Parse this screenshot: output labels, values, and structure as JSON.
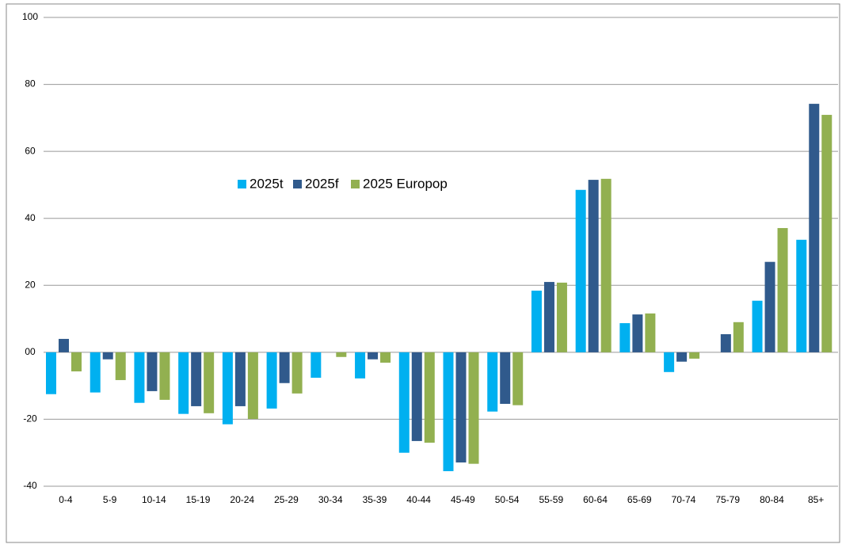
{
  "chart_data": {
    "type": "bar",
    "categories": [
      "0-4",
      "5-9",
      "10-14",
      "15-19",
      "20-24",
      "25-29",
      "30-34",
      "35-39",
      "40-44",
      "45-49",
      "50-54",
      "55-59",
      "60-64",
      "65-69",
      "70-74",
      "75-79",
      "80-84",
      "85+"
    ],
    "series": [
      {
        "name": "2025t",
        "color": "#00b0f0",
        "values": [
          -12.5,
          -12,
          -15.1,
          -18.4,
          -21.5,
          -16.8,
          -7.6,
          -7.8,
          -30,
          -35.5,
          -17.7,
          18.4,
          48.5,
          8.7,
          -5.9,
          null,
          15.4,
          33.6
        ]
      },
      {
        "name": "2025f",
        "color": "#305a8c",
        "values": [
          4,
          -2.1,
          -11.6,
          -16.1,
          -16.1,
          -9.2,
          null,
          -2.1,
          -26.5,
          -32.9,
          -15.4,
          21,
          51.5,
          11.3,
          -2.8,
          5.4,
          27,
          74.2
        ]
      },
      {
        "name": "2025 Europop",
        "color": "#92b050",
        "values": [
          -5.7,
          -8.3,
          -14.2,
          -18.2,
          -19.9,
          -12.3,
          -1.4,
          -3.1,
          -27,
          -33.3,
          -15.8,
          20.8,
          51.8,
          11.6,
          -1.9,
          9,
          37.1,
          70.9
        ]
      }
    ],
    "ylim": [
      -40,
      100
    ],
    "yticks": [
      -40,
      -20,
      {
        "value": 0,
        "label": "00"
      },
      20,
      40,
      60,
      80,
      100
    ],
    "grid": true
  }
}
